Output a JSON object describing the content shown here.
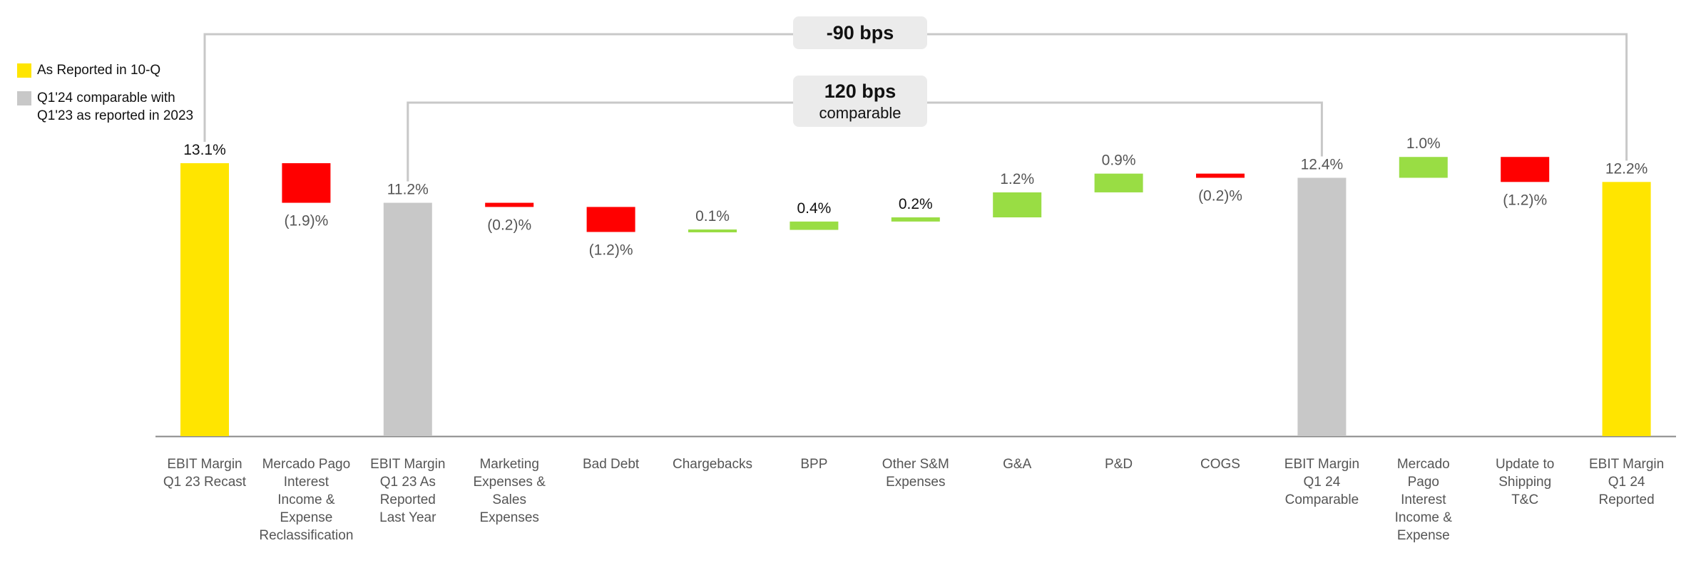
{
  "legend": [
    {
      "label": "As Reported in 10-Q",
      "color": "#FFE500"
    },
    {
      "label": "Q1'24 comparable with Q1'23 as reported in 2023",
      "color": "#C8C8C8"
    }
  ],
  "brackets": [
    {
      "label": "-90 bps",
      "sublabel": "",
      "from": "EBIT Margin Q1 23 Recast",
      "to": "EBIT Margin Q1 24 Reported"
    },
    {
      "label": "120 bps",
      "sublabel": "comparable",
      "from": "EBIT Margin Q1 23 As Reported Last Year",
      "to": "EBIT Margin Q1 24 Comparable"
    }
  ],
  "colors": {
    "reported": "#FFE500",
    "comparable": "#C8C8C8",
    "negative": "#FF0000",
    "positive": "#99DD44",
    "axis": "#888888",
    "bracket": "#C8C8C8"
  },
  "chart_data": {
    "type": "bar",
    "subtype": "waterfall",
    "unit": "%",
    "categories": [
      "EBIT Margin Q1 23 Recast",
      "Mercado Pago Interest Income & Expense Reclassification",
      "EBIT Margin Q1 23 As Reported Last Year",
      "Marketing Expenses & Sales Expenses",
      "Bad Debt",
      "Chargebacks",
      "BPP",
      "Other S&M Expenses",
      "G&A",
      "P&D",
      "COGS",
      "EBIT Margin Q1 24 Comparable",
      "Mercado Pago Interest Income & Expense",
      "Update to Shipping T&C",
      "EBIT Margin Q1 24 Reported"
    ],
    "category_lines": [
      [
        "EBIT Margin",
        "Q1 23 Recast"
      ],
      [
        "Mercado Pago",
        "Interest",
        "Income &",
        "Expense",
        "Reclassification"
      ],
      [
        "EBIT Margin",
        "Q1 23 As",
        "Reported",
        "Last Year"
      ],
      [
        "Marketing",
        "Expenses &",
        "Sales",
        "Expenses"
      ],
      [
        "Bad Debt"
      ],
      [
        "Chargebacks"
      ],
      [
        "BPP"
      ],
      [
        "Other S&M",
        "Expenses"
      ],
      [
        "G&A"
      ],
      [
        "P&D"
      ],
      [
        "COGS"
      ],
      [
        "EBIT Margin",
        "Q1 24",
        "Comparable"
      ],
      [
        "Mercado",
        "Pago",
        "Interest",
        "Income &",
        "Expense"
      ],
      [
        "Update to",
        "Shipping",
        "T&C"
      ],
      [
        "EBIT Margin",
        "Q1 24",
        "Reported"
      ]
    ],
    "values": [
      13.1,
      -1.9,
      11.2,
      -0.2,
      -1.2,
      0.1,
      0.4,
      0.2,
      1.2,
      0.9,
      -0.2,
      12.4,
      1.0,
      -1.2,
      12.2
    ],
    "kinds": [
      "reported",
      "change",
      "comparable",
      "change",
      "change",
      "change",
      "change",
      "change",
      "change",
      "change",
      "change",
      "comparable",
      "change",
      "change",
      "reported"
    ],
    "data_labels": [
      "13.1%",
      "(1.9)%",
      "11.2%",
      "(0.2)%",
      "(1.2)%",
      "0.1%",
      "0.4%",
      "0.2%",
      "1.2%",
      "0.9%",
      "(0.2)%",
      "12.4%",
      "1.0%",
      "(1.2)%",
      "12.2%"
    ],
    "ylim": [
      0,
      13.1
    ],
    "grid": false,
    "legend_position": "top-left"
  }
}
